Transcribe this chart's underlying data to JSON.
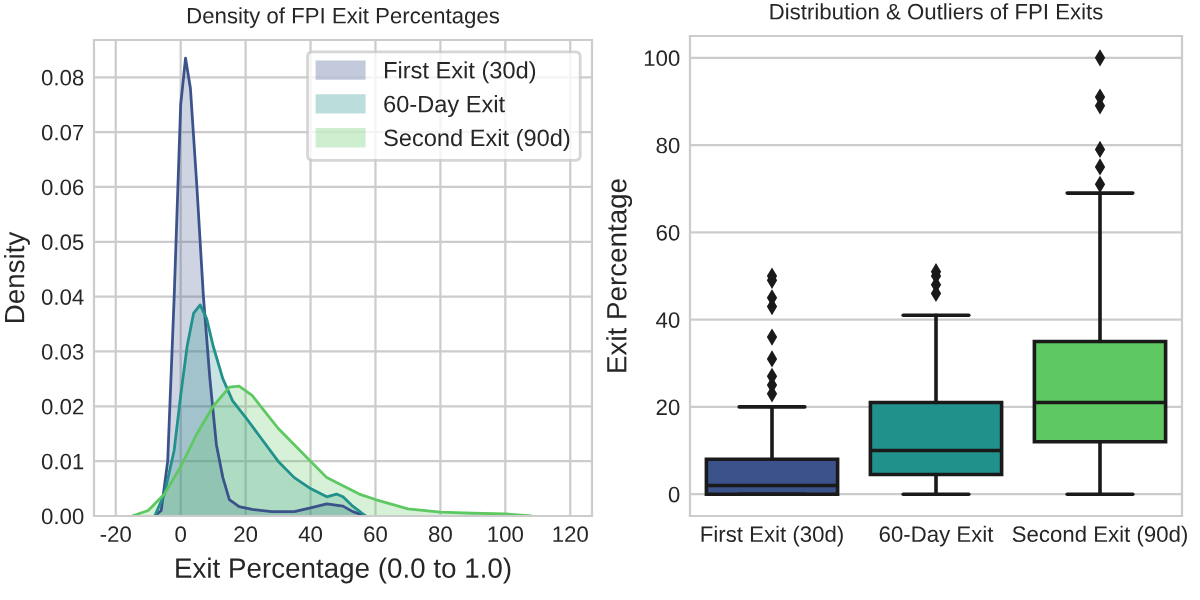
{
  "chart_data": [
    {
      "type": "area",
      "title": "Density of FPI Exit Percentages",
      "xlabel": "Exit Percentage (0.0 to 1.0)",
      "ylabel": "Density",
      "xlim": [
        -26.7,
        126.7
      ],
      "ylim": [
        0,
        0.0868
      ],
      "xticks": [
        -20,
        0,
        20,
        40,
        60,
        80,
        100,
        120
      ],
      "yticks": [
        {
          "value": 0,
          "label": "0.00"
        },
        {
          "value": 0.01,
          "label": "0.01"
        },
        {
          "value": 0.02,
          "label": "0.02"
        },
        {
          "value": 0.03,
          "label": "0.03"
        },
        {
          "value": 0.04,
          "label": "0.04"
        },
        {
          "value": 0.05,
          "label": "0.05"
        },
        {
          "value": 0.06,
          "label": "0.06"
        },
        {
          "value": 0.07,
          "label": "0.07"
        },
        {
          "value": 0.08,
          "label": "0.08"
        }
      ],
      "grid": true,
      "legend": "top right",
      "series": [
        {
          "name": "First Exit (30d)",
          "color": "#3b528b",
          "x": [
            -8,
            -6,
            -4,
            -2,
            0,
            1.5,
            3,
            5,
            7,
            9,
            11,
            13,
            15,
            18,
            22,
            28,
            35,
            40,
            45,
            50,
            53,
            57
          ],
          "values": [
            0,
            0.001,
            0.01,
            0.04,
            0.075,
            0.0835,
            0.078,
            0.06,
            0.04,
            0.025,
            0.013,
            0.007,
            0.003,
            0.0017,
            0.0012,
            0.0008,
            0.0008,
            0.0015,
            0.0022,
            0.0018,
            0.0008,
            0
          ]
        },
        {
          "name": "60-Day Exit",
          "color": "#21918c",
          "x": [
            -8,
            -5,
            -2,
            0,
            2,
            4,
            6,
            8,
            10,
            13,
            16,
            20,
            25,
            30,
            35,
            40,
            45,
            48,
            50,
            53,
            57
          ],
          "values": [
            0,
            0.004,
            0.012,
            0.022,
            0.031,
            0.037,
            0.0385,
            0.036,
            0.031,
            0.025,
            0.021,
            0.018,
            0.014,
            0.01,
            0.007,
            0.005,
            0.0035,
            0.004,
            0.0035,
            0.0018,
            0
          ]
        },
        {
          "name": "Second Exit (90d)",
          "color": "#5ec962",
          "x": [
            -15,
            -10,
            -5,
            0,
            5,
            10,
            15,
            18,
            22,
            26,
            30,
            35,
            40,
            45,
            50,
            55,
            60,
            70,
            80,
            90,
            100,
            108
          ],
          "values": [
            0,
            0.001,
            0.004,
            0.009,
            0.015,
            0.02,
            0.0235,
            0.0237,
            0.022,
            0.019,
            0.016,
            0.013,
            0.01,
            0.007,
            0.0055,
            0.004,
            0.003,
            0.0013,
            0.0007,
            0.0005,
            0.0004,
            0
          ]
        }
      ]
    },
    {
      "type": "box",
      "title": "Distribution & Outliers of FPI Exits",
      "ylabel": "Exit Percentage",
      "categories": [
        "First Exit (30d)",
        "60-Day Exit",
        "Second Exit (90d)"
      ],
      "colors": [
        "#3b528b",
        "#21918c",
        "#5ec962"
      ],
      "ylim": [
        -5,
        105
      ],
      "yticks": [
        0,
        20,
        40,
        60,
        80,
        100
      ],
      "grid": "y",
      "boxes": [
        {
          "low": 0,
          "q1": 0,
          "median": 2,
          "q3": 8,
          "high": 20,
          "outliers": [
            23,
            25,
            27,
            31,
            36,
            43,
            45,
            49,
            50
          ]
        },
        {
          "low": 0,
          "q1": 4.5,
          "median": 10,
          "q3": 21,
          "high": 41,
          "outliers": [
            46,
            48,
            50,
            51
          ]
        },
        {
          "low": 0,
          "q1": 12,
          "median": 21,
          "q3": 35,
          "high": 69,
          "outliers": [
            71,
            75,
            79,
            89,
            91,
            100
          ]
        }
      ]
    }
  ]
}
